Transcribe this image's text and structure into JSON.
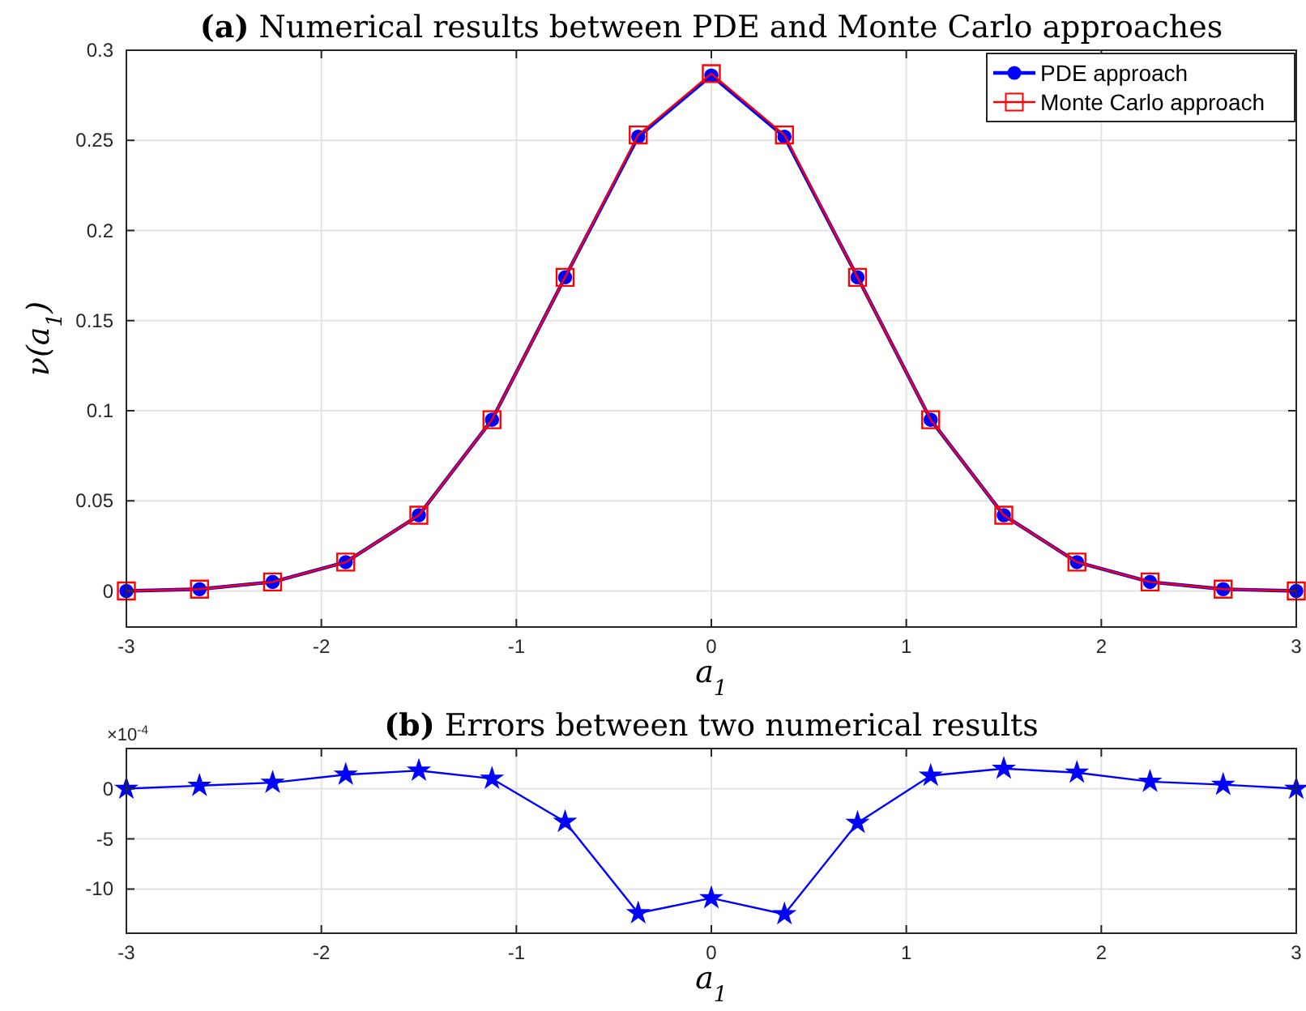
{
  "chart_data": [
    {
      "type": "line",
      "title": "(a) Numerical results between PDE and Monte Carlo approaches",
      "xlabel": "a$_{1}$",
      "ylabel": "ν(a$_{1}$)",
      "x": [
        -3,
        -2.625,
        -2.25,
        -1.875,
        -1.5,
        -1.125,
        -0.75,
        -0.375,
        0,
        0.375,
        0.75,
        1.125,
        1.5,
        1.875,
        2.25,
        2.625,
        3
      ],
      "series": [
        {
          "name": "PDE approach",
          "color": "#0000ff",
          "marker": "circle",
          "values": [
            0,
            0.001,
            0.005,
            0.016,
            0.042,
            0.095,
            0.174,
            0.252,
            0.286,
            0.252,
            0.174,
            0.095,
            0.042,
            0.016,
            0.005,
            0.001,
            0
          ]
        },
        {
          "name": "Monte Carlo approach",
          "color": "#ff0000",
          "marker": "square",
          "values": [
            0,
            0.001,
            0.005,
            0.016,
            0.042,
            0.095,
            0.174,
            0.253,
            0.287,
            0.253,
            0.174,
            0.095,
            0.042,
            0.016,
            0.005,
            0.001,
            0
          ]
        }
      ],
      "xlim": [
        -3,
        3
      ],
      "xticks": [
        -3,
        -2,
        -1,
        0,
        1,
        2,
        3
      ],
      "ylim": [
        -0.02,
        0.3
      ],
      "yticks": [
        0,
        0.05,
        0.1,
        0.15,
        0.2,
        0.25,
        0.3
      ],
      "grid": true,
      "legend": "top right"
    },
    {
      "type": "line",
      "title": "(b) Errors between two numerical results",
      "xlabel": "a$_{1}$",
      "annotations": [
        "×10$^{-4}$"
      ],
      "x": [
        -3,
        -2.625,
        -2.25,
        -1.875,
        -1.5,
        -1.125,
        -0.75,
        -0.375,
        0,
        0.375,
        0.75,
        1.125,
        1.5,
        1.875,
        2.25,
        2.625,
        3
      ],
      "series": [
        {
          "color": "#0000ff",
          "marker": "star",
          "values": [
            0,
            0.3,
            0.6,
            1.4,
            1.8,
            1.0,
            -3.3,
            -12.4,
            -10.9,
            -12.5,
            -3.4,
            1.3,
            2.0,
            1.6,
            0.7,
            0.4,
            0
          ]
        }
      ],
      "xlim": [
        -3,
        3
      ],
      "xticks": [
        -3,
        -2,
        -1,
        0,
        1,
        2,
        3
      ],
      "ylim": [
        -14.4,
        4
      ],
      "yticks": [
        -10,
        -5,
        0
      ],
      "grid": true
    }
  ]
}
